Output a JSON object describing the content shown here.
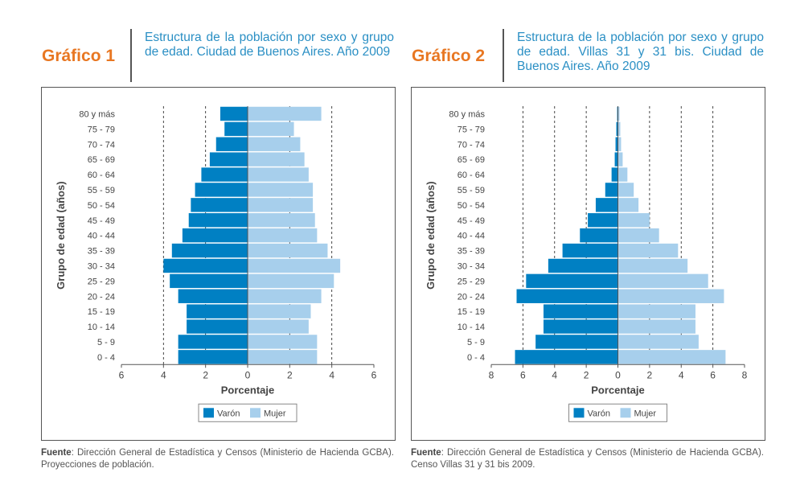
{
  "colors": {
    "male": "#0080c3",
    "female": "#a7cfec",
    "accent": "#e87722",
    "title": "#2a8fc4"
  },
  "figures": [
    {
      "label": "Gráfico 1",
      "title": "Estructura de la población por sexo y grupo de edad. Ciudad de Buenos Aires. Año 2009",
      "source_label": "Fuente",
      "source_text": ": Dirección General de Estadística y Censos (Ministerio de Hacienda GCBA). Proyecciones de población."
    },
    {
      "label": "Gráfico 2",
      "title": "Estructura de la población por sexo y grupo de edad. Villas 31 y 31 bis. Ciudad de Buenos Aires. Año 2009",
      "source_label": "Fuente",
      "source_text": ": Dirección General de Estadística y Censos (Ministerio de Hacienda GCBA). Censo Villas 31 y 31 bis 2009."
    }
  ],
  "chart_data": [
    {
      "type": "bar",
      "orientation": "horizontal-pyramid",
      "categories": [
        "80 y más",
        "75 - 79",
        "70 - 74",
        "65 - 69",
        "60 - 64",
        "55 - 59",
        "50 - 54",
        "45 - 49",
        "40 - 44",
        "35 - 39",
        "30 - 34",
        "25 - 29",
        "20 - 24",
        "15 - 19",
        "10 - 14",
        "5 - 9",
        "0 - 4"
      ],
      "series": [
        {
          "name": "Varón",
          "values": [
            1.3,
            1.1,
            1.5,
            1.8,
            2.2,
            2.5,
            2.7,
            2.8,
            3.1,
            3.6,
            4.0,
            3.7,
            3.3,
            2.9,
            2.9,
            3.3,
            3.3
          ]
        },
        {
          "name": "Mujer",
          "values": [
            3.5,
            2.2,
            2.5,
            2.7,
            2.9,
            3.1,
            3.1,
            3.2,
            3.3,
            3.8,
            4.4,
            4.1,
            3.5,
            3.0,
            2.9,
            3.3,
            3.3
          ]
        }
      ],
      "xlabel": "Porcentaje",
      "ylabel": "Grupo de edad (años)",
      "xlim": [
        -6,
        6
      ],
      "xticks": [
        "6",
        "4",
        "2",
        "0",
        "2",
        "4",
        "6"
      ],
      "grid": "dashed vertical",
      "legend": "bottom"
    },
    {
      "type": "bar",
      "orientation": "horizontal-pyramid",
      "categories": [
        "80 y más",
        "75 - 79",
        "70 - 74",
        "65 - 69",
        "60 - 64",
        "55 - 59",
        "50 - 54",
        "45 - 49",
        "40 - 44",
        "35 - 39",
        "30 - 34",
        "25 - 29",
        "20 - 24",
        "15 - 19",
        "10 - 14",
        "5 - 9",
        "0 - 4"
      ],
      "series": [
        {
          "name": "Varón",
          "values": [
            0.05,
            0.1,
            0.15,
            0.2,
            0.4,
            0.8,
            1.4,
            1.9,
            2.4,
            3.5,
            4.4,
            5.8,
            6.4,
            4.7,
            4.7,
            5.2,
            6.5
          ]
        },
        {
          "name": "Mujer",
          "values": [
            0.1,
            0.15,
            0.2,
            0.3,
            0.6,
            1.0,
            1.3,
            2.0,
            2.6,
            3.8,
            4.4,
            5.7,
            6.7,
            4.9,
            4.9,
            5.1,
            6.8
          ]
        }
      ],
      "xlabel": "Porcentaje",
      "ylabel": "Grupo de edad (años)",
      "xlim": [
        -8,
        8
      ],
      "xticks": [
        "8",
        "6",
        "4",
        "2",
        "0",
        "2",
        "4",
        "6",
        "8"
      ],
      "grid": "dashed vertical",
      "legend": "bottom"
    }
  ]
}
